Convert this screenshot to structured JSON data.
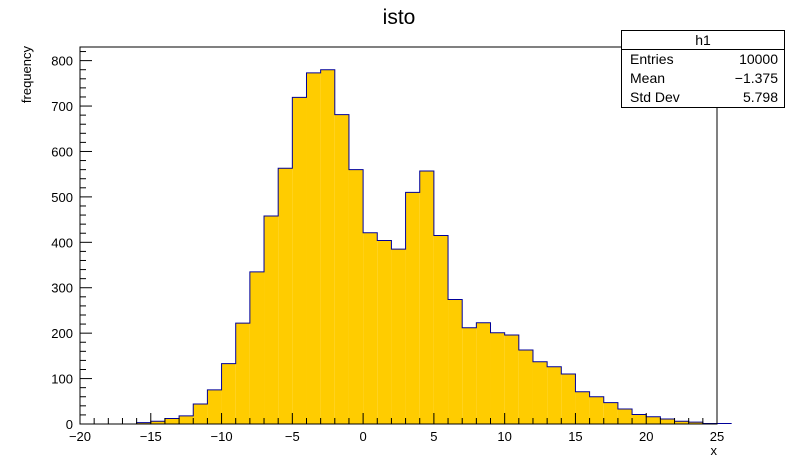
{
  "chart_data": {
    "type": "bar",
    "title": "isto",
    "xlabel": "x",
    "ylabel": "frequency",
    "xlim": [
      -20,
      25
    ],
    "ylim": [
      0,
      830
    ],
    "bin_width": 1,
    "bin_edges_start": -16,
    "values": [
      3,
      6,
      12,
      18,
      44,
      75,
      133,
      222,
      335,
      458,
      563,
      719,
      773,
      780,
      681,
      560,
      421,
      404,
      385,
      510,
      557,
      415,
      274,
      212,
      223,
      201,
      196,
      163,
      137,
      126,
      110,
      71,
      60,
      47,
      33,
      21,
      16,
      11,
      6,
      4,
      1,
      1
    ],
    "xticks": [
      -20,
      -15,
      -10,
      -5,
      0,
      5,
      10,
      15,
      20,
      25
    ],
    "xtick_labels": [
      "−20",
      "−15",
      "−10",
      "−5",
      "0",
      "5",
      "10",
      "15",
      "20",
      "25"
    ],
    "yticks": [
      0,
      100,
      200,
      300,
      400,
      500,
      600,
      700,
      800
    ],
    "fill_color": "#ffcc00",
    "line_color": "#000099",
    "stats": {
      "name": "h1",
      "rows": [
        {
          "label": "Entries",
          "value": "10000"
        },
        {
          "label": "Mean",
          "value": "−1.375"
        },
        {
          "label": "Std Dev",
          "value": "5.798"
        }
      ]
    }
  }
}
